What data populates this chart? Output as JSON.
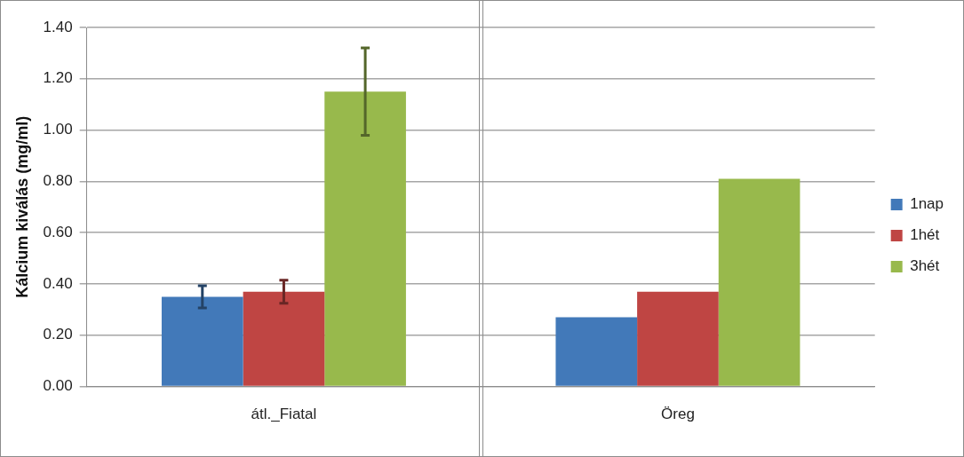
{
  "chart_data": {
    "type": "bar",
    "ylabel": "Kálcium kiválás (mg/ml)",
    "categories": [
      "átl._Fiatal",
      "Öreg"
    ],
    "ylim": [
      0,
      1.4
    ],
    "yticks": [
      {
        "value": 0,
        "label": "0.00"
      },
      {
        "value": 0.2,
        "label": "0.20"
      },
      {
        "value": 0.4,
        "label": "0.40"
      },
      {
        "value": 0.6,
        "label": "0.60"
      },
      {
        "value": 0.8,
        "label": "0.80"
      },
      {
        "value": 1.0,
        "label": "1.00"
      },
      {
        "value": 1.2,
        "label": "1.20"
      },
      {
        "value": 1.4,
        "label": "1.40"
      }
    ],
    "grid": "y",
    "legend": "right",
    "series": [
      {
        "name": "1nap",
        "color": "#4279b9",
        "values": [
          0.35,
          0.27
        ],
        "errors": [
          0.043,
          null
        ]
      },
      {
        "name": "1hét",
        "color": "#bf4543",
        "values": [
          0.37,
          0.37
        ],
        "errors": [
          0.045,
          null
        ]
      },
      {
        "name": "3hét",
        "color": "#98b94c",
        "values": [
          1.15,
          0.81
        ],
        "errors": [
          0.17,
          null
        ]
      }
    ]
  }
}
